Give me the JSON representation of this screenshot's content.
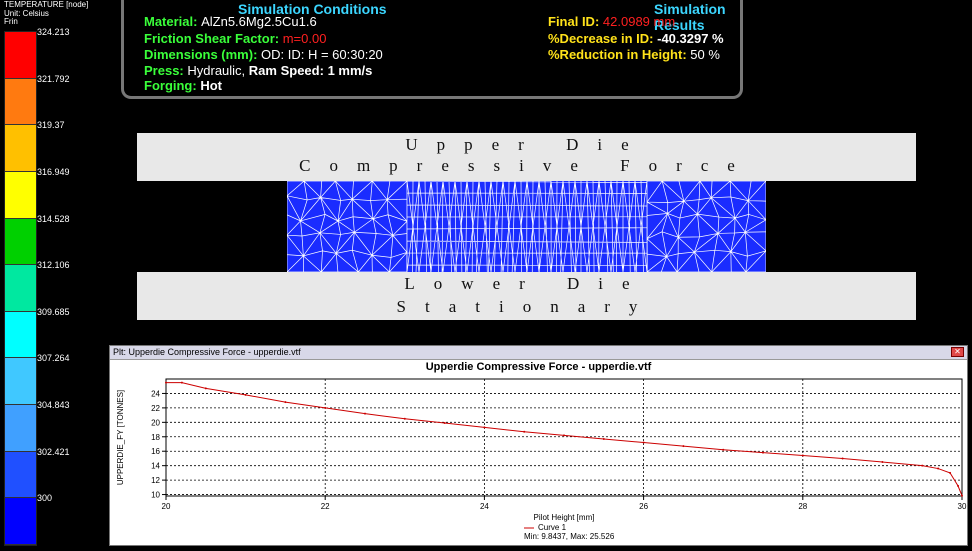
{
  "legend": {
    "title": "TEMPERATURE [node]",
    "unit": "Unit: Celsius",
    "frin": "Frin",
    "ticks": [
      "324.213",
      "321.792",
      "319.37",
      "316.949",
      "314.528",
      "312.106",
      "309.685",
      "307.264",
      "304.843",
      "302.421",
      "300"
    ],
    "colors": [
      "#ff0000",
      "#ff7a10",
      "#ffc000",
      "#ffff00",
      "#00d000",
      "#00e8a0",
      "#00ffff",
      "#40c8ff",
      "#40a0ff",
      "#2050ff",
      "#0000ff"
    ]
  },
  "conditions": {
    "title": "Simulation Conditions",
    "material_label": "Material:",
    "material_value": "AlZn5.6Mg2.5Cu1.6",
    "friction_label": "Friction Shear Factor:",
    "friction_value": "m=0.00",
    "dimensions_label": "Dimensions (mm):",
    "dimensions_value": "OD: ID: H = 60:30:20",
    "press_label": "Press:",
    "press_value": "Hydraulic,",
    "ram_label": "Ram Speed:",
    "ram_value": "1 mm/s",
    "forging_label": "Forging:",
    "forging_value": "Hot"
  },
  "results": {
    "title": "Simulation Results",
    "final_id_label": "Final ID:",
    "final_id_value": "42.0989 mm",
    "decrease_label": "%Decrease in ID:",
    "decrease_value": "-40.3297 %",
    "reduction_label": "%Reduction in Height:",
    "reduction_value": "50 %"
  },
  "upper_die": {
    "line1": "Upper Die",
    "line2": "Compressive Force"
  },
  "lower_die": {
    "line1": "Lower Die",
    "line2": "Stationary"
  },
  "plot_window": {
    "titlebar": "Plt: Upperdie Compressive Force - upperdie.vtf",
    "close_glyph": "✕"
  },
  "chart_data": {
    "type": "line",
    "title": "Upperdie Compressive Force - upperdie.vtf",
    "xlabel": "Pilot Height [mm]",
    "ylabel": "UPPERDIE_FY [TONNES]",
    "xlim": [
      20,
      30
    ],
    "ylim": [
      9.8,
      26
    ],
    "xticks": [
      20,
      22,
      24,
      26,
      28,
      30
    ],
    "yticks": [
      10,
      12,
      14,
      16,
      18,
      20,
      22,
      24
    ],
    "grid": true,
    "color": "#cc0000",
    "series": [
      {
        "name": "Curve 1",
        "x": [
          20,
          20.2,
          20.5,
          21,
          21.5,
          22,
          22.5,
          23,
          23.5,
          24,
          24.5,
          25,
          25.5,
          26,
          26.5,
          27,
          27.5,
          28,
          28.5,
          29,
          29.5,
          29.7,
          29.85,
          29.95,
          30
        ],
        "y": [
          25.5,
          25.5,
          24.7,
          23.8,
          22.8,
          22.0,
          21.2,
          20.5,
          19.9,
          19.3,
          18.7,
          18.2,
          17.7,
          17.2,
          16.7,
          16.2,
          15.8,
          15.4,
          15.0,
          14.5,
          14.0,
          13.6,
          13.0,
          11.2,
          9.84
        ]
      }
    ],
    "legend": {
      "label": "Curve 1",
      "stats": "Min: 9.8437, Max: 25.526"
    }
  }
}
